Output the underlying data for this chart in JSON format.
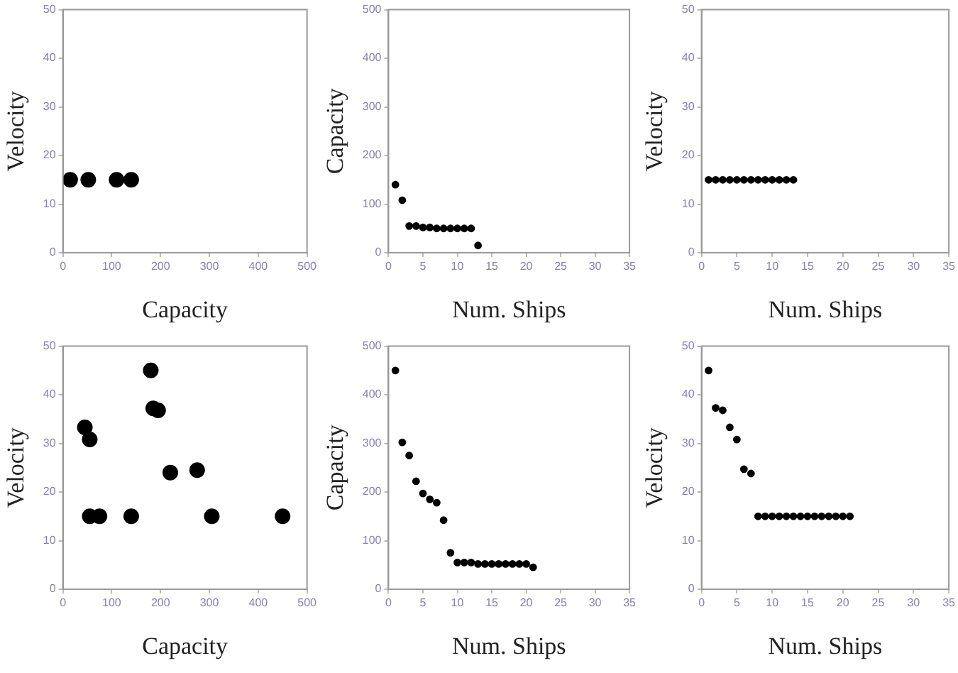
{
  "chart_data": [
    {
      "type": "scatter",
      "xlabel": "Capacity",
      "ylabel": "Velocity",
      "xlim": [
        0,
        500
      ],
      "xticks": [
        0,
        100,
        200,
        300,
        400,
        500
      ],
      "ylim": [
        0,
        50
      ],
      "yticks": [
        0,
        10,
        20,
        30,
        40,
        50
      ],
      "grid": false,
      "marker": "circle",
      "series": [
        {
          "color": "#000000",
          "x": [
            15,
            52,
            110,
            140
          ],
          "values": [
            15,
            15,
            15,
            15
          ]
        }
      ]
    },
    {
      "type": "scatter",
      "xlabel": "Num. Ships",
      "ylabel": "Capacity",
      "xlim": [
        0,
        35
      ],
      "xticks": [
        0,
        5,
        10,
        15,
        20,
        25,
        30,
        35
      ],
      "ylim": [
        0,
        500
      ],
      "yticks": [
        0,
        100,
        200,
        300,
        400,
        500
      ],
      "grid": false,
      "marker": "circle",
      "series": [
        {
          "color": "#000000",
          "x": [
            1,
            2,
            3,
            4,
            5,
            6,
            7,
            8,
            9,
            10,
            11,
            12,
            13
          ],
          "values": [
            140,
            108,
            55,
            55,
            52,
            52,
            50,
            50,
            50,
            50,
            50,
            50,
            15
          ]
        }
      ]
    },
    {
      "type": "scatter",
      "xlabel": "Num. Ships",
      "ylabel": "Velocity",
      "xlim": [
        0,
        35
      ],
      "xticks": [
        0,
        5,
        10,
        15,
        20,
        25,
        30,
        35
      ],
      "ylim": [
        0,
        50
      ],
      "yticks": [
        0,
        10,
        20,
        30,
        40,
        50
      ],
      "grid": false,
      "marker": "circle",
      "series": [
        {
          "color": "#000000",
          "x": [
            1,
            2,
            3,
            4,
            5,
            6,
            7,
            8,
            9,
            10,
            11,
            12,
            13
          ],
          "values": [
            15,
            15,
            15,
            15,
            15,
            15,
            15,
            15,
            15,
            15,
            15,
            15,
            15
          ]
        }
      ]
    },
    {
      "type": "scatter",
      "xlabel": "Capacity",
      "ylabel": "Velocity",
      "xlim": [
        0,
        500
      ],
      "xticks": [
        0,
        100,
        200,
        300,
        400,
        500
      ],
      "ylim": [
        0,
        50
      ],
      "yticks": [
        0,
        10,
        20,
        30,
        40,
        50
      ],
      "grid": false,
      "marker": "circle",
      "series": [
        {
          "color": "#000000",
          "x": [
            45,
            55,
            55,
            75,
            140,
            180,
            185,
            195,
            220,
            275,
            305,
            450
          ],
          "values": [
            33.3,
            30.8,
            15,
            15,
            15,
            45,
            37.2,
            36.8,
            24,
            24.5,
            15,
            15
          ]
        }
      ]
    },
    {
      "type": "scatter",
      "xlabel": "Num. Ships",
      "ylabel": "Capacity",
      "xlim": [
        0,
        35
      ],
      "xticks": [
        0,
        5,
        10,
        15,
        20,
        25,
        30,
        35
      ],
      "ylim": [
        0,
        500
      ],
      "yticks": [
        0,
        100,
        200,
        300,
        400,
        500
      ],
      "grid": false,
      "marker": "circle",
      "series": [
        {
          "color": "#000000",
          "x": [
            1,
            2,
            3,
            4,
            5,
            6,
            7,
            8,
            9,
            10,
            11,
            12,
            13,
            14,
            15,
            16,
            17,
            18,
            19,
            20,
            21
          ],
          "values": [
            450,
            302,
            275,
            222,
            197,
            185,
            178,
            142,
            75,
            55,
            55,
            55,
            52,
            52,
            52,
            52,
            52,
            52,
            52,
            52,
            45
          ]
        }
      ]
    },
    {
      "type": "scatter",
      "xlabel": "Num. Ships",
      "ylabel": "Velocity",
      "xlim": [
        0,
        35
      ],
      "xticks": [
        0,
        5,
        10,
        15,
        20,
        25,
        30,
        35
      ],
      "ylim": [
        0,
        50
      ],
      "yticks": [
        0,
        10,
        20,
        30,
        40,
        50
      ],
      "grid": false,
      "marker": "circle",
      "series": [
        {
          "color": "#000000",
          "x": [
            1,
            2,
            3,
            4,
            5,
            6,
            7,
            8,
            9,
            10,
            11,
            12,
            13,
            14,
            15,
            16,
            17,
            18,
            19,
            20,
            21
          ],
          "values": [
            45,
            37.3,
            36.8,
            33.3,
            30.8,
            24.7,
            23.8,
            15,
            15,
            15,
            15,
            15,
            15,
            15,
            15,
            15,
            15,
            15,
            15,
            15,
            15
          ]
        }
      ]
    }
  ]
}
